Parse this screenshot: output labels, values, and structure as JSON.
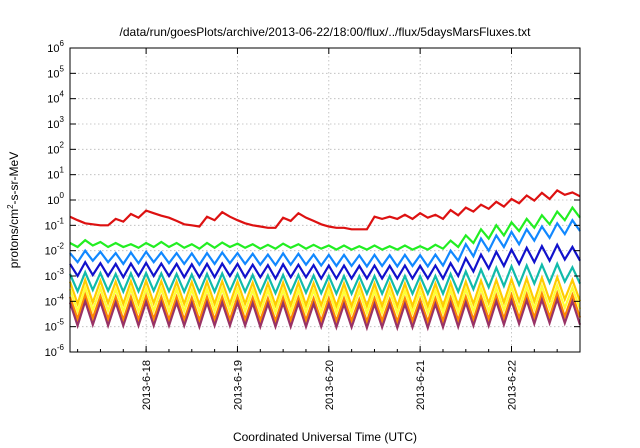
{
  "chart_data": {
    "type": "line",
    "title": "/data/run/goesPlots/archive/2013-06-22/18:00/flux/../flux/5daysMarsFluxes.txt",
    "xlabel": "Coordinated Universal Time (UTC)",
    "ylabel": "protons/cm2-s-sr-MeV",
    "ylabel_parts": {
      "before": "protons/cm",
      "sup": "2",
      "after": "-s-sr-MeV"
    },
    "y_scale": "log",
    "ylim": [
      1e-06,
      1000000.0
    ],
    "y_ticks": [
      {
        "base": "10",
        "exp": "-6"
      },
      {
        "base": "10",
        "exp": "-5"
      },
      {
        "base": "10",
        "exp": "-4"
      },
      {
        "base": "10",
        "exp": "-3"
      },
      {
        "base": "10",
        "exp": "-2"
      },
      {
        "base": "10",
        "exp": "-1"
      },
      {
        "base": "10",
        "exp": "0"
      },
      {
        "base": "10",
        "exp": "1"
      },
      {
        "base": "10",
        "exp": "2"
      },
      {
        "base": "10",
        "exp": "3"
      },
      {
        "base": "10",
        "exp": "4"
      },
      {
        "base": "10",
        "exp": "5"
      },
      {
        "base": "10",
        "exp": "6"
      }
    ],
    "xlim": [
      "2013-06-17 04:00",
      "2013-06-22 18:00"
    ],
    "x_ticks": [
      "2013-6-18",
      "2013-6-19",
      "2013-6-20",
      "2013-6-21",
      "2013-6-22"
    ],
    "grid": true,
    "legend": "none",
    "series": [
      {
        "color": "#dd1111",
        "values": [
          0.22,
          0.16,
          0.12,
          0.11,
          0.1,
          0.1,
          0.18,
          0.14,
          0.28,
          0.2,
          0.38,
          0.3,
          0.24,
          0.2,
          0.15,
          0.11,
          0.1,
          0.09,
          0.22,
          0.16,
          0.33,
          0.22,
          0.16,
          0.12,
          0.1,
          0.09,
          0.08,
          0.08,
          0.2,
          0.15,
          0.3,
          0.2,
          0.15,
          0.11,
          0.09,
          0.08,
          0.08,
          0.07,
          0.07,
          0.07,
          0.22,
          0.18,
          0.22,
          0.18,
          0.26,
          0.18,
          0.3,
          0.2,
          0.26,
          0.18,
          0.4,
          0.25,
          0.5,
          0.35,
          0.65,
          0.45,
          0.85,
          0.55,
          1.1,
          0.75,
          1.5,
          0.95,
          1.9,
          1.1,
          2.4,
          1.6,
          2.0,
          1.4
        ]
      },
      {
        "color": "#22ee22",
        "values": [
          0.02,
          0.014,
          0.026,
          0.016,
          0.022,
          0.014,
          0.02,
          0.014,
          0.018,
          0.013,
          0.02,
          0.014,
          0.022,
          0.014,
          0.02,
          0.013,
          0.018,
          0.012,
          0.02,
          0.013,
          0.021,
          0.014,
          0.019,
          0.013,
          0.018,
          0.012,
          0.017,
          0.012,
          0.019,
          0.013,
          0.018,
          0.012,
          0.017,
          0.012,
          0.016,
          0.011,
          0.016,
          0.011,
          0.015,
          0.011,
          0.016,
          0.011,
          0.015,
          0.011,
          0.016,
          0.011,
          0.015,
          0.011,
          0.017,
          0.012,
          0.025,
          0.014,
          0.04,
          0.02,
          0.07,
          0.03,
          0.1,
          0.04,
          0.13,
          0.06,
          0.18,
          0.08,
          0.25,
          0.11,
          0.35,
          0.16,
          0.5,
          0.2
        ]
      },
      {
        "color": "#1188ff",
        "values": [
          0.008,
          0.0035,
          0.01,
          0.004,
          0.009,
          0.0035,
          0.008,
          0.003,
          0.0085,
          0.0032,
          0.009,
          0.0035,
          0.0085,
          0.0032,
          0.008,
          0.003,
          0.0078,
          0.0028,
          0.008,
          0.003,
          0.0085,
          0.0032,
          0.008,
          0.003,
          0.0075,
          0.0028,
          0.007,
          0.0027,
          0.0078,
          0.0028,
          0.0075,
          0.0028,
          0.007,
          0.0026,
          0.0068,
          0.0025,
          0.0068,
          0.0025,
          0.0065,
          0.0024,
          0.0068,
          0.0025,
          0.0066,
          0.0024,
          0.0068,
          0.0025,
          0.0066,
          0.0024,
          0.007,
          0.0026,
          0.01,
          0.004,
          0.018,
          0.006,
          0.03,
          0.01,
          0.04,
          0.014,
          0.055,
          0.018,
          0.07,
          0.025,
          0.09,
          0.032,
          0.12,
          0.045,
          0.16,
          0.06
        ]
      },
      {
        "color": "#1111cc",
        "values": [
          0.003,
          0.001,
          0.0035,
          0.0011,
          0.0032,
          0.001,
          0.003,
          0.0009,
          0.0031,
          0.001,
          0.0033,
          0.001,
          0.0031,
          0.001,
          0.003,
          0.0009,
          0.0029,
          0.0009,
          0.003,
          0.0009,
          0.0031,
          0.001,
          0.003,
          0.0009,
          0.0028,
          0.0009,
          0.0027,
          0.0008,
          0.0029,
          0.0009,
          0.0028,
          0.0009,
          0.0027,
          0.0008,
          0.0026,
          0.0008,
          0.0026,
          0.0008,
          0.0025,
          0.0008,
          0.0026,
          0.0008,
          0.0025,
          0.0008,
          0.0026,
          0.0008,
          0.0025,
          0.0008,
          0.0026,
          0.0008,
          0.0032,
          0.001,
          0.005,
          0.0015,
          0.007,
          0.002,
          0.009,
          0.0025,
          0.011,
          0.003,
          0.013,
          0.0035,
          0.015,
          0.004,
          0.017,
          0.0045,
          0.014,
          0.004
        ]
      },
      {
        "color": "#11bbaa",
        "values": [
          0.0012,
          0.00025,
          0.0014,
          0.00028,
          0.0013,
          0.00026,
          0.0012,
          0.00024,
          0.00125,
          0.00025,
          0.0013,
          0.00026,
          0.00125,
          0.00025,
          0.0012,
          0.00024,
          0.00115,
          0.00023,
          0.0012,
          0.00024,
          0.00125,
          0.00025,
          0.0012,
          0.00024,
          0.0011,
          0.00022,
          0.00105,
          0.00021,
          0.0011,
          0.00022,
          0.0011,
          0.00022,
          0.00105,
          0.00021,
          0.001,
          0.0002,
          0.001,
          0.0002,
          0.00098,
          0.0002,
          0.001,
          0.0002,
          0.00098,
          0.0002,
          0.001,
          0.0002,
          0.00098,
          0.0002,
          0.001,
          0.0002,
          0.0012,
          0.00024,
          0.0015,
          0.0003,
          0.0018,
          0.00036,
          0.0021,
          0.0004,
          0.0024,
          0.00045,
          0.0026,
          0.0005,
          0.0028,
          0.00055,
          0.003,
          0.0006,
          0.0022,
          0.0005
        ]
      },
      {
        "color": "#ffcc00",
        "values": [
          0.0006,
          8e-05,
          0.0007,
          9e-05,
          0.00065,
          8.5e-05,
          0.0006,
          8e-05,
          0.00062,
          8e-05,
          0.00065,
          8.5e-05,
          0.00062,
          8e-05,
          0.0006,
          8e-05,
          0.00058,
          7.5e-05,
          0.0006,
          8e-05,
          0.00062,
          8e-05,
          0.0006,
          8e-05,
          0.00055,
          7e-05,
          0.00052,
          7e-05,
          0.00055,
          7e-05,
          0.00055,
          7e-05,
          0.00052,
          7e-05,
          0.0005,
          6.5e-05,
          0.0005,
          6.5e-05,
          0.00049,
          6.5e-05,
          0.0005,
          6.5e-05,
          0.00049,
          6.5e-05,
          0.0005,
          6.5e-05,
          0.00049,
          6.5e-05,
          0.0005,
          6.5e-05,
          0.00055,
          7e-05,
          0.0006,
          8e-05,
          0.00065,
          8.5e-05,
          0.0007,
          9e-05,
          0.00075,
          0.0001,
          0.0008,
          0.0001,
          0.00085,
          0.00011,
          0.0009,
          0.00012,
          0.0007,
          0.0001
        ]
      },
      {
        "color": "#ffff33",
        "values": [
          0.0003,
          4e-05,
          0.00035,
          4.5e-05,
          0.00032,
          4.2e-05,
          0.0003,
          4e-05,
          0.00031,
          4e-05,
          0.00032,
          4.2e-05,
          0.00031,
          4e-05,
          0.0003,
          4e-05,
          0.00029,
          3.8e-05,
          0.0003,
          4e-05,
          0.00031,
          4e-05,
          0.0003,
          4e-05,
          0.00028,
          3.7e-05,
          0.00027,
          3.6e-05,
          0.00028,
          3.7e-05,
          0.00028,
          3.7e-05,
          0.00027,
          3.6e-05,
          0.00026,
          3.5e-05,
          0.00026,
          3.5e-05,
          0.00025,
          3.4e-05,
          0.00026,
          3.5e-05,
          0.00025,
          3.4e-05,
          0.00026,
          3.5e-05,
          0.00025,
          3.4e-05,
          0.00026,
          3.5e-05,
          0.00028,
          3.7e-05,
          0.0003,
          4e-05,
          0.00032,
          4.2e-05,
          0.00034,
          4.5e-05,
          0.00036,
          4.8e-05,
          0.00038,
          5e-05,
          0.0004,
          5.3e-05,
          0.00042,
          5.5e-05,
          0.00035,
          5e-05
        ]
      },
      {
        "color": "#ff8800",
        "values": [
          0.00015,
          2e-05,
          0.00018,
          2.2e-05,
          0.00016,
          2e-05,
          0.00015,
          1.9e-05,
          0.00015,
          1.9e-05,
          0.00016,
          2e-05,
          0.00015,
          1.9e-05,
          0.00015,
          1.9e-05,
          0.00014,
          1.8e-05,
          0.00015,
          1.9e-05,
          0.00015,
          1.9e-05,
          0.00015,
          1.9e-05,
          0.00014,
          1.8e-05,
          0.00013,
          1.7e-05,
          0.00014,
          1.8e-05,
          0.00014,
          1.8e-05,
          0.00013,
          1.7e-05,
          0.00013,
          1.7e-05,
          0.00013,
          1.7e-05,
          0.00012,
          1.6e-05,
          0.00013,
          1.7e-05,
          0.00012,
          1.6e-05,
          0.00013,
          1.7e-05,
          0.00012,
          1.6e-05,
          0.00013,
          1.7e-05,
          0.00014,
          1.8e-05,
          0.00015,
          1.9e-05,
          0.00016,
          2e-05,
          0.00017,
          2.1e-05,
          0.00018,
          2.2e-05,
          0.00019,
          2.3e-05,
          0.0002,
          2.4e-05,
          0.00021,
          2.5e-05,
          0.00018,
          2.3e-05
        ]
      },
      {
        "color": "#993366",
        "values": [
          9e-05,
          1.1e-05,
          0.0001,
          1.2e-05,
          9.5e-05,
          1.1e-05,
          9e-05,
          1.1e-05,
          9e-05,
          1.1e-05,
          9.5e-05,
          1.1e-05,
          9e-05,
          1.1e-05,
          9e-05,
          1.1e-05,
          8.5e-05,
          1e-05,
          9e-05,
          1.1e-05,
          9e-05,
          1.1e-05,
          9e-05,
          1.1e-05,
          8.5e-05,
          1e-05,
          8e-05,
          1e-05,
          8.5e-05,
          1e-05,
          8.5e-05,
          1e-05,
          8e-05,
          1e-05,
          7.8e-05,
          9.5e-06,
          7.8e-05,
          9.5e-06,
          7.5e-05,
          9e-06,
          7.8e-05,
          9.5e-06,
          7.5e-05,
          9e-06,
          7.8e-05,
          9.5e-06,
          7.5e-05,
          9e-06,
          7.8e-05,
          9.5e-06,
          8.5e-05,
          1e-05,
          9e-05,
          1.1e-05,
          9.5e-05,
          1.1e-05,
          0.0001,
          1.2e-05,
          0.000105,
          1.3e-05,
          0.00011,
          1.3e-05,
          0.000115,
          1.4e-05,
          0.00012,
          1.4e-05,
          0.0001,
          1.2e-05
        ]
      }
    ]
  }
}
